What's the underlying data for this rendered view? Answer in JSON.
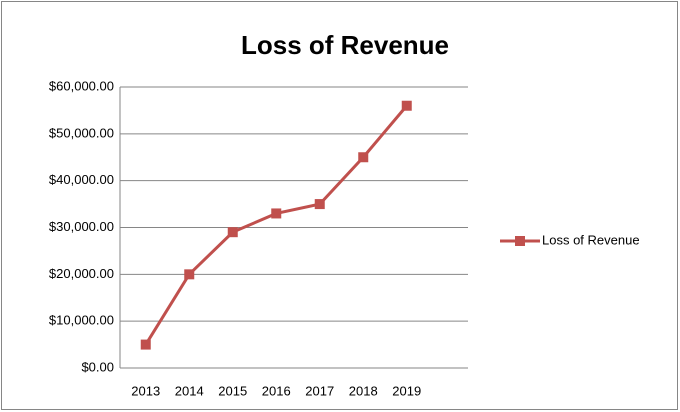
{
  "chart_data": {
    "type": "line",
    "title": "Loss of Revenue",
    "categories": [
      "2013",
      "2014",
      "2015",
      "2016",
      "2017",
      "2018",
      "2019",
      null
    ],
    "series": [
      {
        "name": "Loss of Revenue",
        "color": "#c0504d",
        "values": [
          5000,
          20000,
          29000,
          33000,
          35000,
          45000,
          56000,
          null
        ]
      }
    ],
    "ylim": [
      0,
      60000
    ],
    "yticks": [
      {
        "value": 0,
        "label": "$0.00"
      },
      {
        "value": 10000,
        "label": "$10,000.00"
      },
      {
        "value": 20000,
        "label": "$20,000.00"
      },
      {
        "value": 30000,
        "label": "$30,000.00"
      },
      {
        "value": 40000,
        "label": "$40,000.00"
      },
      {
        "value": 50000,
        "label": "$50,000.00"
      },
      {
        "value": 60000,
        "label": "$60,000.00"
      }
    ],
    "grid": true,
    "legend": "right"
  }
}
